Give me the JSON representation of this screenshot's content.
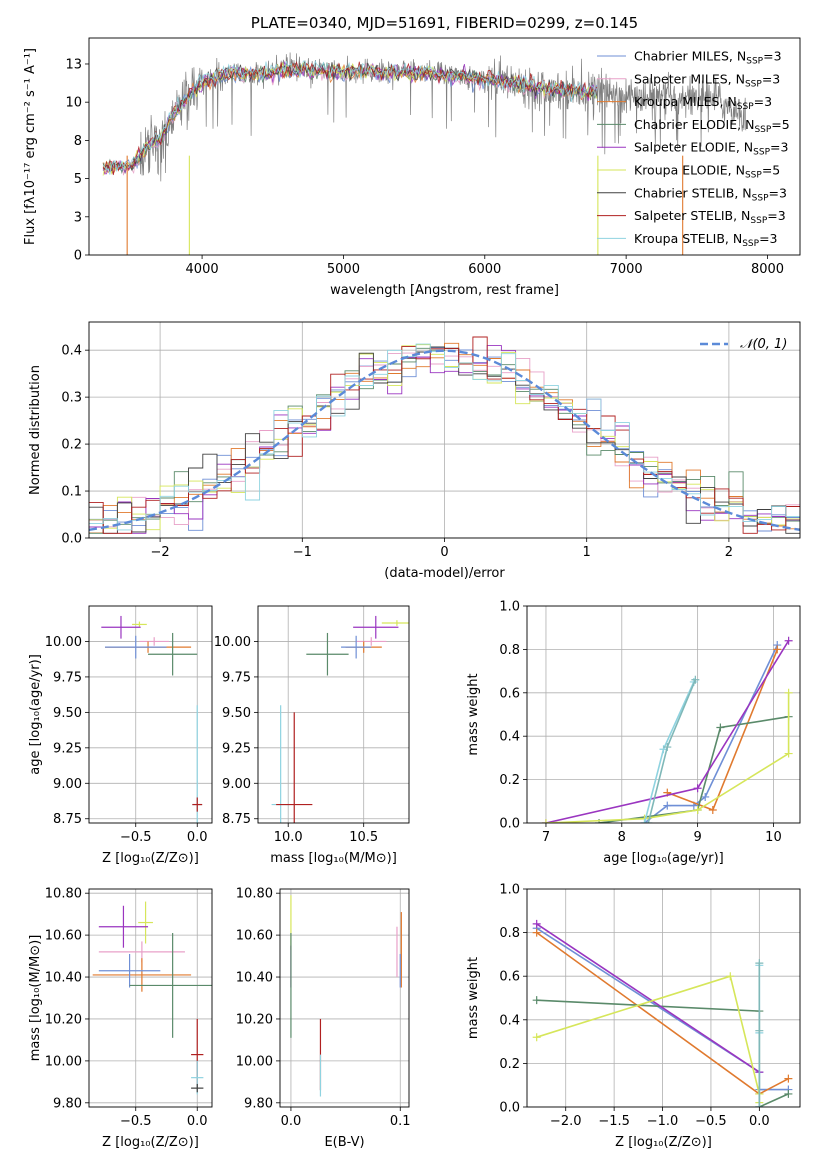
{
  "chart_data": [
    {
      "id": "spectrum",
      "type": "line",
      "title": "PLATE=0340, MJD=51691, FIBERID=0299, z=0.145",
      "xlabel": "wavelength [Angstrom, rest frame]",
      "ylabel": "Flux [fλ10⁻¹⁷ erg cm⁻² s⁻¹ A⁻¹]",
      "xlim": [
        3200,
        8230
      ],
      "ylim": [
        0,
        14.2
      ],
      "xticks": [
        4000,
        5000,
        6000,
        7000,
        8000
      ],
      "yticks": [
        0.0,
        2.5,
        5.0,
        7.5,
        10.0,
        12.5
      ],
      "grid": false,
      "legend_position": "right",
      "legend": [
        {
          "label": "Chabrier MILES, N",
          "sub": "SSP",
          "suffix": "=3",
          "color": "#6f8fd6"
        },
        {
          "label": "Salpeter MILES, N",
          "sub": "SSP",
          "suffix": "=3",
          "color": "#e8a0c8"
        },
        {
          "label": "Kroupa MILES, N",
          "sub": "SSP",
          "suffix": "=3",
          "color": "#e07a2f"
        },
        {
          "label": "Chabrier ELODIE, N",
          "sub": "SSP",
          "suffix": "=5",
          "color": "#5a8a6a"
        },
        {
          "label": "Salpeter ELODIE, N",
          "sub": "SSP",
          "suffix": "=3",
          "color": "#9a35c0"
        },
        {
          "label": "Kroupa ELODIE, N",
          "sub": "SSP",
          "suffix": "=5",
          "color": "#d6e65a"
        },
        {
          "label": "Chabrier STELIB, N",
          "sub": "SSP",
          "suffix": "=3",
          "color": "#404040"
        },
        {
          "label": "Salpeter STELIB, N",
          "sub": "SSP",
          "suffix": "=3",
          "color": "#b02020"
        },
        {
          "label": "Kroupa STELIB, N",
          "sub": "SSP",
          "suffix": "=3",
          "color": "#8fd3e0"
        }
      ],
      "data_series_color": "#808080",
      "data_envelope": {
        "x": [
          3300,
          3500,
          3550,
          3600,
          3700,
          3800,
          3900,
          4000,
          4200,
          4400,
          4600,
          5000,
          5200,
          5500,
          5800,
          6000,
          6300,
          6500,
          6800,
          7000,
          7200,
          7600,
          7850
        ],
        "y": [
          5.8,
          5.8,
          6.3,
          6.8,
          7.5,
          9.0,
          10.3,
          11.2,
          12.0,
          11.7,
          12.3,
          12.0,
          12.1,
          12.0,
          11.8,
          11.6,
          11.1,
          10.9,
          10.7,
          10.4,
          10.2,
          10.4,
          9.0
        ]
      },
      "model_envelope": {
        "x": [
          3300,
          3500,
          3550,
          3600,
          3700,
          3800,
          3900,
          4000,
          4200,
          4400,
          4600,
          5000,
          5200,
          5500,
          5800,
          6000,
          6300,
          6500,
          6800
        ],
        "y": [
          5.7,
          5.8,
          6.4,
          6.9,
          7.6,
          9.2,
          10.4,
          11.3,
          11.9,
          11.8,
          12.1,
          12.0,
          12.0,
          11.9,
          11.7,
          11.5,
          11.1,
          10.8,
          10.6
        ]
      },
      "vertical_drops": [
        {
          "x": 3470,
          "color": "#e07a2f"
        },
        {
          "x": 3910,
          "color": "#d6e65a"
        },
        {
          "x": 6800,
          "color": "#d6e65a"
        },
        {
          "x": 7400,
          "color": "#e07a2f"
        }
      ]
    },
    {
      "id": "residuals",
      "type": "line",
      "title": "",
      "xlabel": "(data-model)/error",
      "ylabel": "Normed distribution",
      "xlim": [
        -2.5,
        2.5
      ],
      "ylim": [
        0,
        0.46
      ],
      "xticks": [
        -2,
        -1,
        0,
        1,
        2
      ],
      "yticks": [
        0.0,
        0.1,
        0.2,
        0.3,
        0.4
      ],
      "grid": true,
      "legend_position": "top-right",
      "legend": [
        {
          "label": "𝒩(0, 1)",
          "color": "#5b8ad8",
          "style": "dashed"
        }
      ],
      "series": [
        {
          "name": "Chabrier MILES",
          "color": "#6f8fd6"
        },
        {
          "name": "Salpeter MILES",
          "color": "#e8a0c8"
        },
        {
          "name": "Kroupa MILES",
          "color": "#e07a2f"
        },
        {
          "name": "Chabrier ELODIE",
          "color": "#5a8a6a"
        },
        {
          "name": "Salpeter ELODIE",
          "color": "#9a35c0"
        },
        {
          "name": "Kroupa ELODIE",
          "color": "#d6e65a"
        },
        {
          "name": "Chabrier STELIB",
          "color": "#404040"
        },
        {
          "name": "Salpeter STELIB",
          "color": "#b02020"
        },
        {
          "name": "Kroupa STELIB",
          "color": "#8fd3e0"
        }
      ],
      "hist_bin_width": 0.1
    },
    {
      "id": "age_vs_Z",
      "type": "scatter",
      "xlabel": "Z [log₁₀(Z/Z⊙)]",
      "ylabel": "age  [log₁₀(age/yr)]",
      "xlim": [
        -0.88,
        0.12
      ],
      "ylim": [
        8.72,
        10.25
      ],
      "xticks": [
        -0.5,
        0.0
      ],
      "yticks": [
        8.75,
        9.0,
        9.25,
        9.5,
        9.75,
        10.0
      ],
      "xticklabels": [
        "−0.5",
        "0.0"
      ],
      "grid": true,
      "points": [
        {
          "x": -0.47,
          "y": 10.12,
          "xerr": 0.06,
          "yerr": 0.02,
          "color": "#d6e65a"
        },
        {
          "x": -0.62,
          "y": 10.1,
          "xerr": 0.16,
          "yerr": 0.08,
          "color": "#9a35c0"
        },
        {
          "x": -0.35,
          "y": 10.0,
          "xerr": 0.12,
          "yerr": 0.03,
          "color": "#e8a0c8"
        },
        {
          "x": -0.4,
          "y": 9.96,
          "xerr": 0.35,
          "yerr": 0.04,
          "color": "#e07a2f"
        },
        {
          "x": -0.5,
          "y": 9.96,
          "xerr": 0.25,
          "yerr": 0.08,
          "color": "#6f8fd6"
        },
        {
          "x": -0.2,
          "y": 9.91,
          "xerr": 0.2,
          "yerr": 0.15,
          "color": "#5a8a6a"
        },
        {
          "x": 0.0,
          "y": 8.85,
          "xerr": 0.04,
          "yerr": 0.7,
          "color": "#8fd3e0"
        },
        {
          "x": 0.0,
          "y": 8.85,
          "xerr": 0.04,
          "yerr": 0.05,
          "color": "#b02020"
        }
      ]
    },
    {
      "id": "age_vs_mass",
      "type": "scatter",
      "xlabel": "mass [log₁₀(M/M⊙)]",
      "ylabel": "",
      "xlim": [
        9.8,
        10.8
      ],
      "ylim": [
        8.72,
        10.25
      ],
      "xticks": [
        10.0,
        10.5
      ],
      "yticks": [
        8.75,
        9.0,
        9.25,
        9.5,
        9.75,
        10.0
      ],
      "grid": true,
      "points": [
        {
          "x": 10.72,
          "y": 10.13,
          "xerr": 0.1,
          "yerr": 0.02,
          "color": "#d6e65a"
        },
        {
          "x": 10.58,
          "y": 10.1,
          "xerr": 0.15,
          "yerr": 0.08,
          "color": "#9a35c0"
        },
        {
          "x": 10.55,
          "y": 10.0,
          "xerr": 0.1,
          "yerr": 0.03,
          "color": "#e8a0c8"
        },
        {
          "x": 10.5,
          "y": 9.96,
          "xerr": 0.12,
          "yerr": 0.04,
          "color": "#e07a2f"
        },
        {
          "x": 10.45,
          "y": 9.96,
          "xerr": 0.1,
          "yerr": 0.08,
          "color": "#6f8fd6"
        },
        {
          "x": 10.26,
          "y": 9.91,
          "xerr": 0.14,
          "yerr": 0.15,
          "color": "#5a8a6a"
        },
        {
          "x": 9.95,
          "y": 8.85,
          "xerr": 0.06,
          "yerr": 0.7,
          "color": "#8fd3e0"
        },
        {
          "x": 10.04,
          "y": 8.85,
          "xerr": 0.12,
          "yerr": 0.65,
          "color": "#b02020"
        }
      ]
    },
    {
      "id": "massweight_vs_age",
      "type": "line",
      "xlabel": "age  [log₁₀(age/yr)]",
      "ylabel": "mass weight",
      "xlim": [
        6.75,
        10.35
      ],
      "ylim": [
        0,
        1.0
      ],
      "xticks": [
        7,
        8,
        9,
        10
      ],
      "yticks": [
        0.0,
        0.2,
        0.4,
        0.6,
        0.8,
        1.0
      ],
      "grid": true,
      "series": [
        {
          "name": "Chabrier MILES",
          "color": "#6f8fd6",
          "x": [
            8.3,
            8.6,
            8.95,
            9.1,
            10.05
          ],
          "y": [
            0.0,
            0.08,
            0.08,
            0.12,
            0.82
          ]
        },
        {
          "name": "Kroupa MILES",
          "color": "#e07a2f",
          "x": [
            8.6,
            9.2,
            10.05
          ],
          "y": [
            0.14,
            0.06,
            0.8
          ]
        },
        {
          "name": "Chabrier ELODIE",
          "color": "#5a8a6a",
          "x": [
            7.7,
            9.0,
            9.3,
            10.2
          ],
          "y": [
            0.0,
            0.06,
            0.44,
            0.49
          ]
        },
        {
          "name": "Salpeter ELODIE",
          "color": "#9a35c0",
          "x": [
            7.0,
            9.0,
            10.2
          ],
          "y": [
            0.0,
            0.16,
            0.84
          ]
        },
        {
          "name": "Kroupa ELODIE",
          "color": "#d6e65a",
          "x": [
            7.0,
            8.3,
            9.0,
            10.2,
            10.2
          ],
          "y": [
            0.0,
            0.02,
            0.06,
            0.32,
            0.6
          ]
        },
        {
          "name": "Kroupa STELIB",
          "color": "#8fd3e0",
          "x": [
            8.3,
            8.55,
            8.95
          ],
          "y": [
            0.0,
            0.34,
            0.65
          ]
        },
        {
          "name": "Chabrier STELIB",
          "color": "#7fb8b8",
          "x": [
            8.35,
            8.6,
            8.97
          ],
          "y": [
            0.0,
            0.35,
            0.66
          ]
        }
      ]
    },
    {
      "id": "mass_vs_Z",
      "type": "scatter",
      "xlabel": "Z [log₁₀(Z/Z⊙)]",
      "ylabel": "mass [log₁₀(M/M⊙)]",
      "xlim": [
        -0.88,
        0.12
      ],
      "ylim": [
        9.78,
        10.82
      ],
      "xticks": [
        -0.5,
        0.0
      ],
      "yticks": [
        9.8,
        10.0,
        10.2,
        10.4,
        10.6,
        10.8
      ],
      "xticklabels": [
        "−0.5",
        "0.0"
      ],
      "grid": true,
      "points": [
        {
          "x": -0.42,
          "y": 10.66,
          "xerr": 0.06,
          "yerr": 0.1,
          "color": "#d6e65a"
        },
        {
          "x": -0.6,
          "y": 10.64,
          "xerr": 0.2,
          "yerr": 0.1,
          "color": "#9a35c0"
        },
        {
          "x": -0.45,
          "y": 10.52,
          "xerr": 0.35,
          "yerr": 0.05,
          "color": "#e8a0c8"
        },
        {
          "x": -0.45,
          "y": 10.41,
          "xerr": 0.4,
          "yerr": 0.08,
          "color": "#e07a2f"
        },
        {
          "x": -0.55,
          "y": 10.43,
          "xerr": 0.25,
          "yerr": 0.08,
          "color": "#6f8fd6"
        },
        {
          "x": -0.2,
          "y": 10.36,
          "xerr": 0.35,
          "yerr": 0.25,
          "color": "#5a8a6a"
        },
        {
          "x": 0.0,
          "y": 10.03,
          "xerr": 0.05,
          "yerr": 0.17,
          "color": "#b02020"
        },
        {
          "x": 0.0,
          "y": 9.92,
          "xerr": 0.05,
          "yerr": 0.08,
          "color": "#8fd3e0"
        },
        {
          "x": 0.0,
          "y": 9.87,
          "xerr": 0.05,
          "yerr": 0.02,
          "color": "#404040"
        }
      ]
    },
    {
      "id": "mass_vs_ebv",
      "type": "scatter",
      "xlabel": "E(B-V)",
      "ylabel": "",
      "xlim": [
        -0.01,
        0.108
      ],
      "ylim": [
        9.78,
        10.82
      ],
      "xticks": [
        0.0,
        0.1
      ],
      "yticks": [
        9.8,
        10.0,
        10.2,
        10.4,
        10.6,
        10.8
      ],
      "grid": true,
      "points": [
        {
          "x": 0.0,
          "y": 10.66,
          "xerr": 0,
          "yerr": 0.13,
          "color": "#d6e65a"
        },
        {
          "x": 0.0,
          "y": 10.45,
          "xerr": 0,
          "yerr": 0.1,
          "color": "#9a35c0"
        },
        {
          "x": 0.0,
          "y": 10.36,
          "xerr": 0,
          "yerr": 0.25,
          "color": "#5a8a6a"
        },
        {
          "x": 0.027,
          "y": 10.03,
          "xerr": 0,
          "yerr": 0.17,
          "color": "#b02020"
        },
        {
          "x": 0.027,
          "y": 9.93,
          "xerr": 0,
          "yerr": 0.1,
          "color": "#8fd3e0"
        },
        {
          "x": 0.097,
          "y": 10.52,
          "xerr": 0,
          "yerr": 0.12,
          "color": "#e8a0c8"
        },
        {
          "x": 0.101,
          "y": 10.53,
          "xerr": 0,
          "yerr": 0.18,
          "color": "#e07a2f"
        },
        {
          "x": 0.1,
          "y": 10.43,
          "xerr": 0,
          "yerr": 0.08,
          "color": "#6f8fd6"
        }
      ]
    },
    {
      "id": "massweight_vs_Z",
      "type": "line",
      "xlabel": "Z [log₁₀(Z/Z⊙)]",
      "ylabel": "mass weight",
      "xlim": [
        -2.4,
        0.42
      ],
      "ylim": [
        0,
        1.0
      ],
      "xticks": [
        -2.0,
        -1.5,
        -1.0,
        -0.5,
        0.0
      ],
      "xticklabels": [
        "−2.0",
        "−1.5",
        "−1.0",
        "−0.5",
        "0.0"
      ],
      "yticks": [
        0.0,
        0.2,
        0.4,
        0.6,
        0.8,
        1.0
      ],
      "grid": true,
      "series": [
        {
          "name": "Chabrier MILES",
          "color": "#6f8fd6",
          "x": [
            -2.3,
            0.0,
            0.0,
            0.3
          ],
          "y": [
            0.82,
            0.16,
            0.08,
            0.08
          ]
        },
        {
          "name": "Kroupa MILES",
          "color": "#e07a2f",
          "x": [
            -2.3,
            0.0,
            0.3
          ],
          "y": [
            0.8,
            0.06,
            0.13
          ]
        },
        {
          "name": "Chabrier ELODIE",
          "color": "#5a8a6a",
          "x": [
            -2.3,
            0.0,
            0.0,
            0.3
          ],
          "y": [
            0.49,
            0.44,
            0.0,
            0.06
          ]
        },
        {
          "name": "Salpeter ELODIE",
          "color": "#9a35c0",
          "x": [
            -2.3,
            0.0
          ],
          "y": [
            0.84,
            0.16
          ]
        },
        {
          "name": "Kroupa ELODIE",
          "color": "#d6e65a",
          "x": [
            -2.3,
            -0.3,
            0.0,
            0.0
          ],
          "y": [
            0.32,
            0.6,
            0.06,
            0.02
          ]
        },
        {
          "name": "Kroupa STELIB",
          "color": "#8fd3e0",
          "x": [
            0.0,
            0.0,
            0.0
          ],
          "y": [
            0.0,
            0.34,
            0.65
          ]
        },
        {
          "name": "Chabrier STELIB",
          "color": "#7fb8b8",
          "x": [
            0.0,
            0.0,
            0.0
          ],
          "y": [
            0.0,
            0.35,
            0.66
          ]
        }
      ]
    }
  ]
}
